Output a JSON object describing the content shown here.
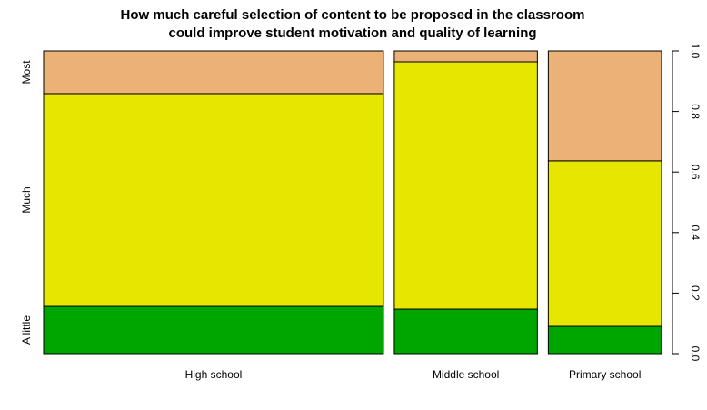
{
  "chart_data": {
    "type": "spineplot",
    "title": [
      "How much careful selection of content to be proposed in the classroom",
      "could improve student motivation and quality of learning"
    ],
    "categories": [
      "High school",
      "Middle school",
      "Primary school"
    ],
    "column_shares": [
      0.57,
      0.24,
      0.19
    ],
    "series": [
      {
        "name": "A little",
        "color": "#00a600",
        "values": [
          0.156,
          0.147,
          0.09
        ]
      },
      {
        "name": "Much",
        "color": "#e6e600",
        "values": [
          0.703,
          0.817,
          0.547
        ]
      },
      {
        "name": "Most",
        "color": "#ecb176",
        "values": [
          0.141,
          0.036,
          0.363
        ]
      }
    ],
    "y2lim": [
      0,
      1
    ],
    "y2ticks": [
      {
        "value": 0,
        "label": "0.0"
      },
      {
        "value": 0.2,
        "label": "0.2"
      },
      {
        "value": 0.4,
        "label": "0.4"
      },
      {
        "value": 0.6,
        "label": "0.6"
      },
      {
        "value": 0.8,
        "label": "0.8"
      },
      {
        "value": 1,
        "label": "1.0"
      }
    ]
  }
}
